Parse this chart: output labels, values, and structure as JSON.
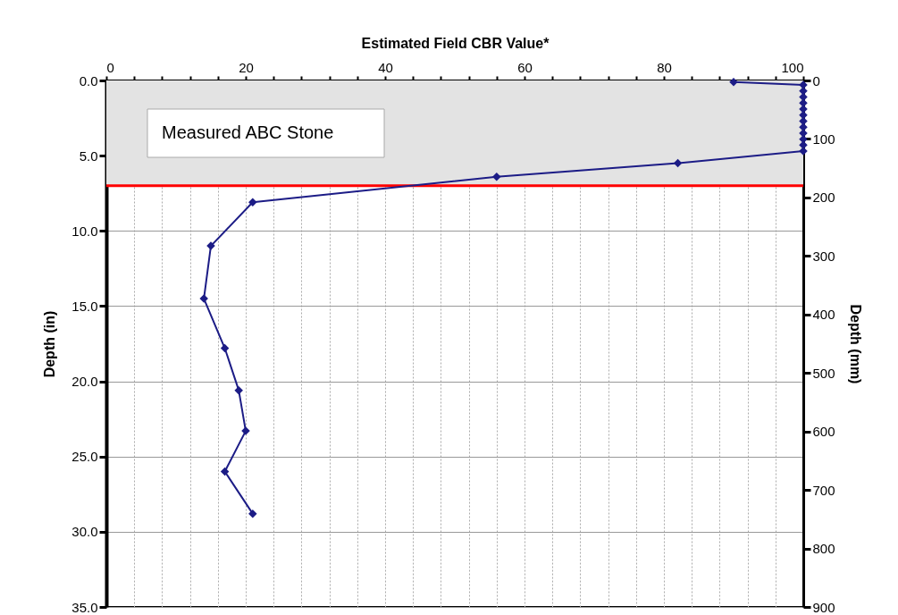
{
  "chart_data": {
    "type": "line",
    "xlabel": "Estimated Field CBR Value*",
    "ylabel": "Depth (in)",
    "y2label": "Depth (mm)",
    "xlim": [
      0,
      100
    ],
    "xticks": [
      0,
      {
        "value": 4,
        "label": null
      },
      {
        "value": 8,
        "label": null
      },
      {
        "value": 12,
        "label": null
      },
      {
        "value": 16,
        "label": null
      },
      20,
      {
        "value": 24,
        "label": null
      },
      {
        "value": 28,
        "label": null
      },
      {
        "value": 32,
        "label": null
      },
      {
        "value": 36,
        "label": null
      },
      40,
      {
        "value": 44,
        "label": null
      },
      {
        "value": 48,
        "label": null
      },
      {
        "value": 52,
        "label": null
      },
      {
        "value": 56,
        "label": null
      },
      60,
      {
        "value": 64,
        "label": null
      },
      {
        "value": 68,
        "label": null
      },
      {
        "value": 72,
        "label": null
      },
      {
        "value": 76,
        "label": null
      },
      80,
      {
        "value": 84,
        "label": null
      },
      {
        "value": 88,
        "label": null
      },
      {
        "value": 92,
        "label": null
      },
      {
        "value": 96,
        "label": null
      },
      100
    ],
    "ylim": [
      35,
      0
    ],
    "yticks": [
      {
        "value": 0,
        "label": "0.0"
      },
      {
        "value": 5,
        "label": "5.0"
      },
      {
        "value": 10,
        "label": "10.0"
      },
      {
        "value": 15,
        "label": "15.0"
      },
      {
        "value": 20,
        "label": "20.0"
      },
      {
        "value": 25,
        "label": "25.0"
      },
      {
        "value": 30,
        "label": "30.0"
      },
      {
        "value": 35,
        "label": "35.0"
      }
    ],
    "y2lim": [
      900,
      0
    ],
    "y2ticks": [
      0,
      100,
      200,
      300,
      400,
      500,
      600,
      700,
      800,
      900
    ],
    "grid": true,
    "marker": "diamond",
    "bands": [
      {
        "axis": "y",
        "from": 0,
        "to": 7,
        "label": "Measured ABC Stone",
        "color": "#e3e3e3"
      }
    ],
    "ref_lines": [
      {
        "axis": "y",
        "value": 7,
        "color": "#ff0000"
      }
    ],
    "series": [
      {
        "color": "#1c1c86",
        "x": [
          90,
          100,
          100,
          100,
          100,
          100,
          100,
          100,
          100,
          100,
          100,
          100,
          100,
          82,
          56,
          21,
          15,
          14,
          17,
          19,
          20,
          17,
          21
        ],
        "values": [
          0.1,
          0.3,
          0.7,
          1.1,
          1.5,
          1.9,
          2.3,
          2.7,
          3.1,
          3.5,
          3.9,
          4.3,
          4.7,
          5.5,
          6.4,
          8.1,
          11.0,
          14.5,
          17.8,
          20.6,
          23.3,
          26.0,
          28.8
        ]
      }
    ]
  }
}
